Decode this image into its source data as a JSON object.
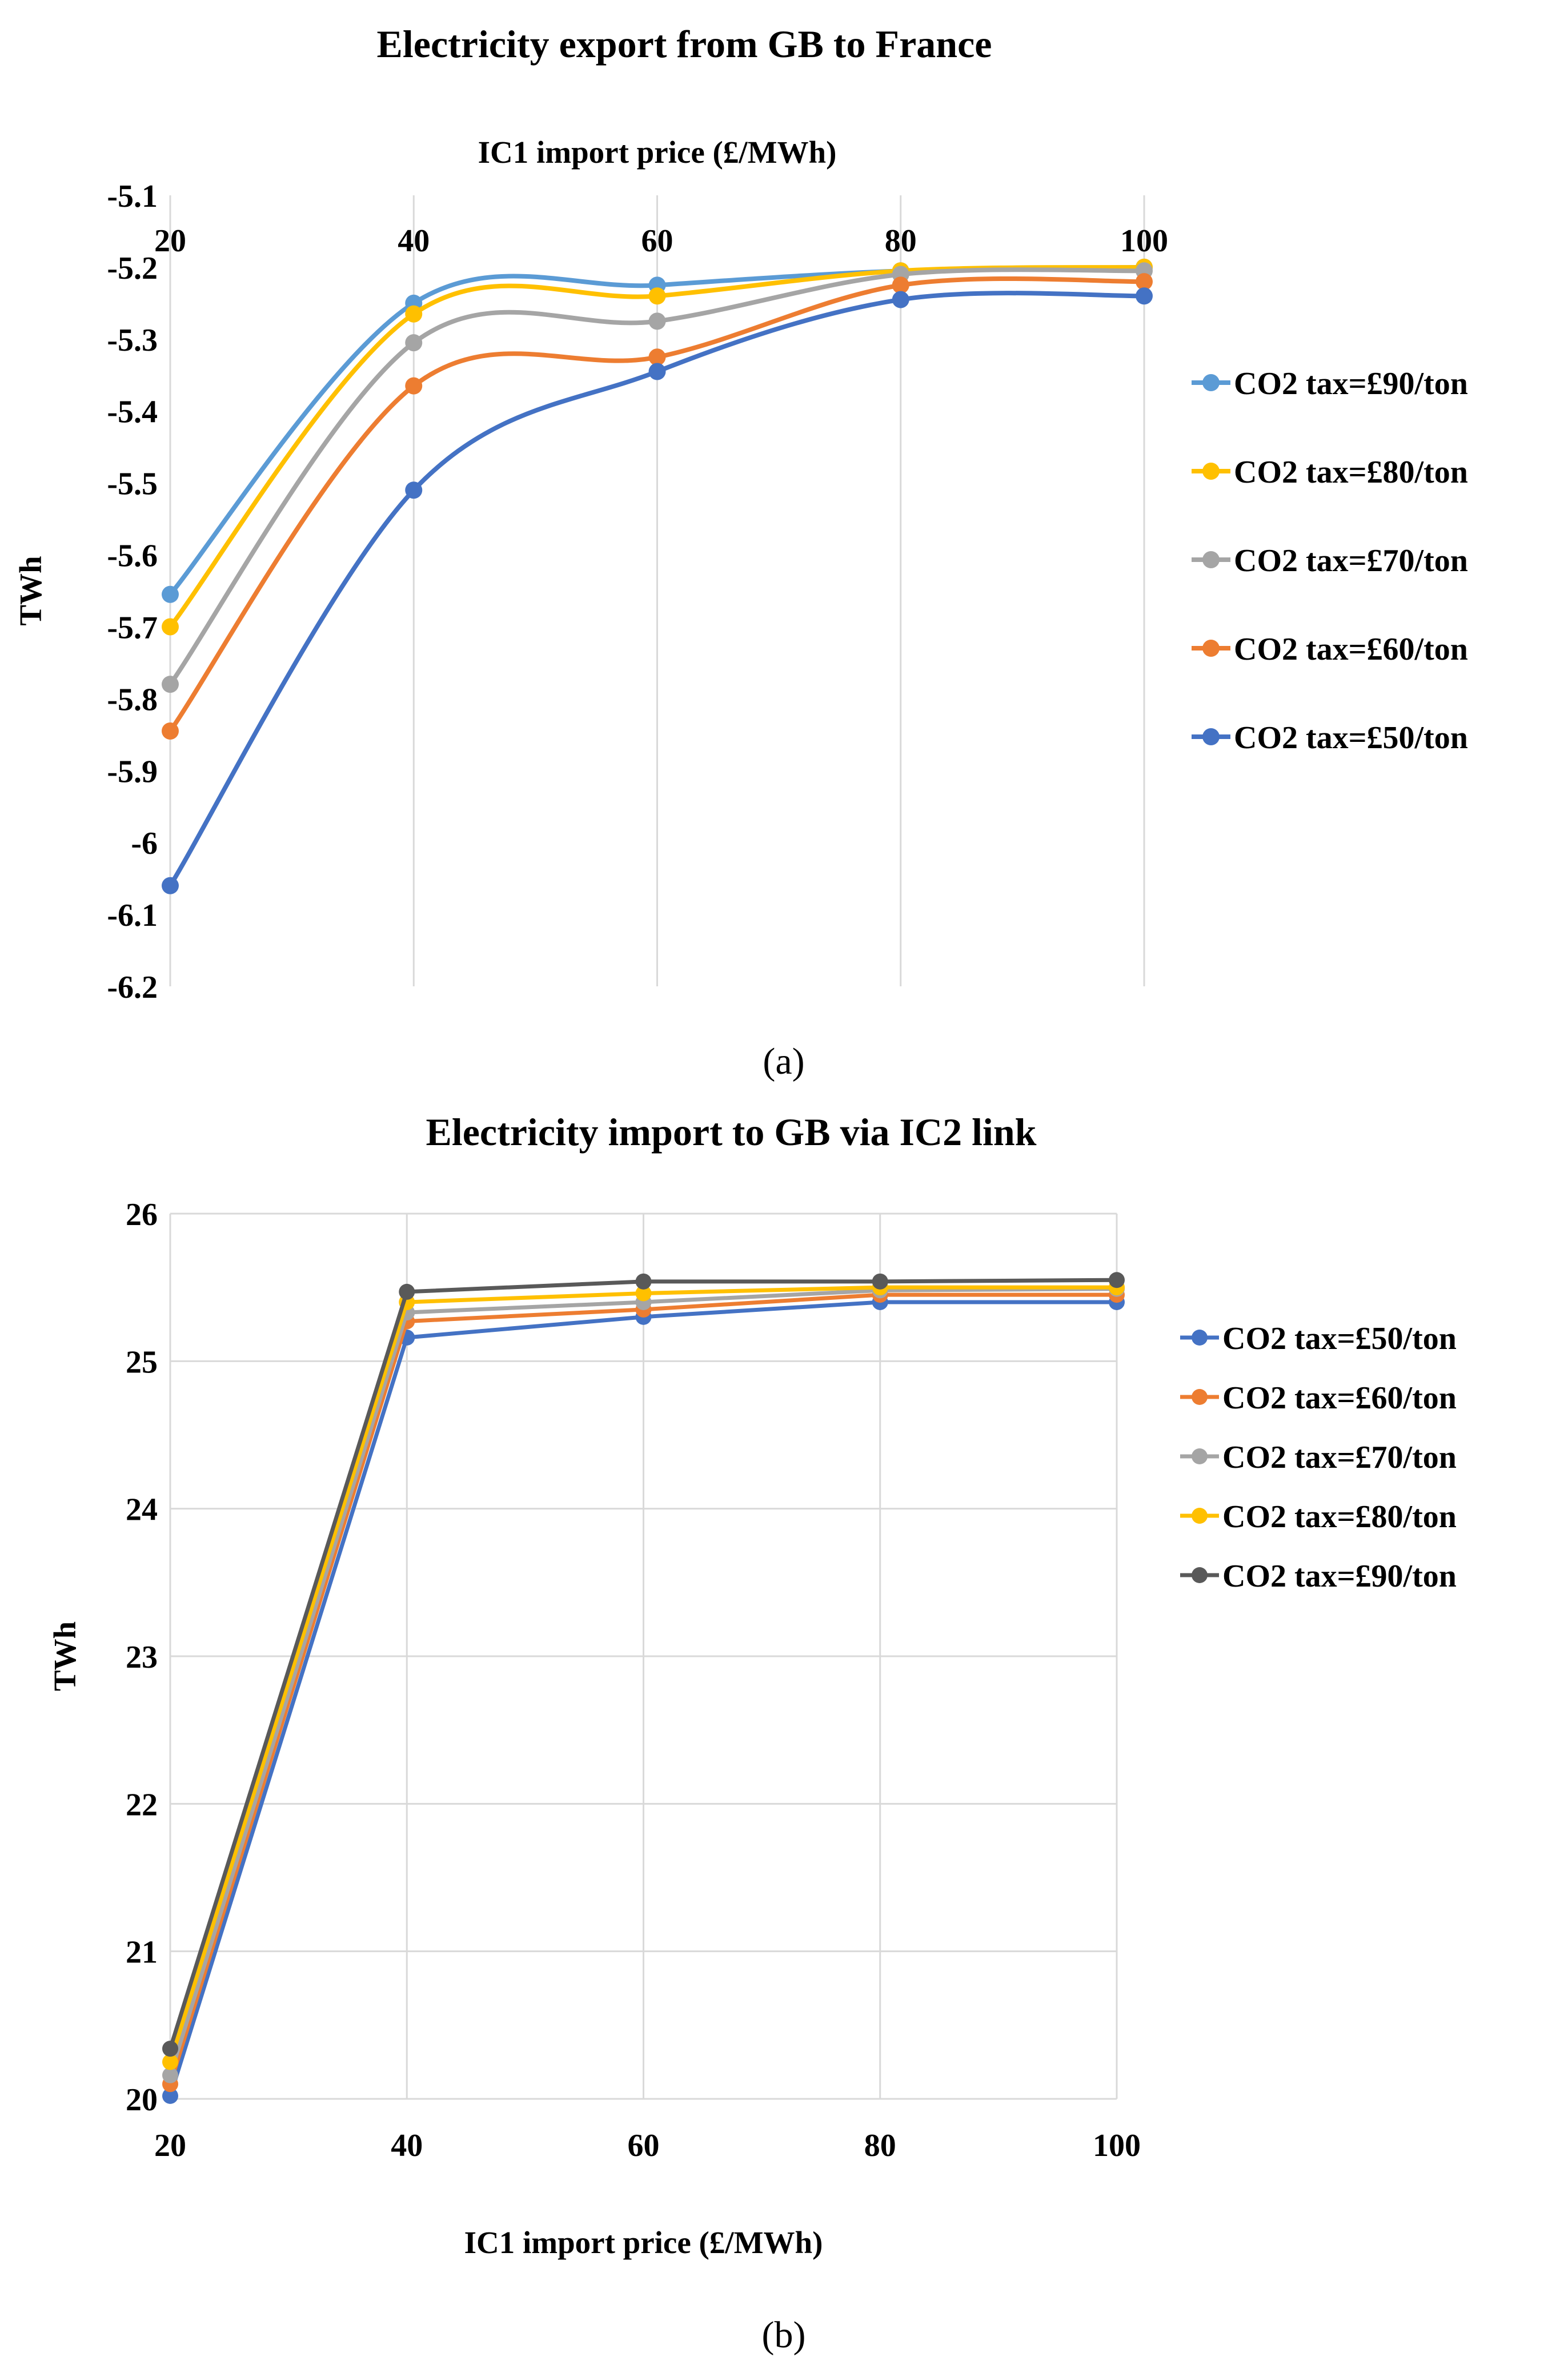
{
  "figure": {
    "panels": [
      {
        "label": "a"
      },
      {
        "label": "b"
      }
    ]
  },
  "chart_data": [
    {
      "type": "line",
      "smooth": true,
      "title": "Electricity export from GB to France",
      "xlabel": "IC1 import price (£/MWh)",
      "xlabel_position": "top",
      "ylabel": "TWh",
      "categories": [
        "20",
        "40",
        "60",
        "80",
        "100"
      ],
      "ylim": [
        -6.2,
        -5.1
      ],
      "yticks": [
        "-5.1",
        "-5.2",
        "-5.3",
        "-5.4",
        "-5.5",
        "-5.6",
        "-5.7",
        "-5.8",
        "-5.9",
        "-6",
        "-6.1",
        "-6.2"
      ],
      "ytick_values": [
        -5.1,
        -5.2,
        -5.3,
        -5.4,
        -5.5,
        -5.6,
        -5.7,
        -5.8,
        -5.9,
        -6.0,
        -6.1,
        -6.2
      ],
      "grid": "vertical",
      "legend_position": "right",
      "series": [
        {
          "name": "CO2 tax=£90/ton",
          "color": "#5b9bd5",
          "values": [
            -5.655,
            -5.25,
            -5.225,
            -5.205,
            -5.2
          ]
        },
        {
          "name": "CO2 tax=£80/ton",
          "color": "#ffc000",
          "values": [
            -5.7,
            -5.265,
            -5.24,
            -5.205,
            -5.2
          ]
        },
        {
          "name": "CO2 tax=£70/ton",
          "color": "#a5a5a5",
          "values": [
            -5.78,
            -5.305,
            -5.275,
            -5.21,
            -5.205
          ]
        },
        {
          "name": "CO2 tax=£60/ton",
          "color": "#ed7d31",
          "values": [
            -5.845,
            -5.365,
            -5.325,
            -5.225,
            -5.22
          ]
        },
        {
          "name": "CO2 tax=£50/ton",
          "color": "#4472c4",
          "values": [
            -6.06,
            -5.51,
            -5.345,
            -5.245,
            -5.24
          ]
        }
      ]
    },
    {
      "type": "line",
      "smooth": false,
      "title": "Electricity import to GB via IC2 link",
      "xlabel": "IC1 import price  (£/MWh)",
      "xlabel_position": "bottom",
      "ylabel": "TWh",
      "categories": [
        "20",
        "40",
        "60",
        "80",
        "100"
      ],
      "ylim": [
        20,
        26
      ],
      "yticks": [
        "20",
        "21",
        "22",
        "23",
        "24",
        "25",
        "26"
      ],
      "ytick_values": [
        20,
        21,
        22,
        23,
        24,
        25,
        26
      ],
      "grid": "both",
      "legend_position": "right",
      "series": [
        {
          "name": "CO2 tax=£50/ton",
          "color": "#4472c4",
          "values": [
            20.02,
            25.16,
            25.3,
            25.4,
            25.4
          ]
        },
        {
          "name": "CO2 tax=£60/ton",
          "color": "#ed7d31",
          "values": [
            20.1,
            25.27,
            25.35,
            25.45,
            25.45
          ]
        },
        {
          "name": "CO2 tax=£70/ton",
          "color": "#a5a5a5",
          "values": [
            20.16,
            25.33,
            25.4,
            25.48,
            25.49
          ]
        },
        {
          "name": "CO2 tax=£80/ton",
          "color": "#ffc000",
          "values": [
            20.25,
            25.4,
            25.46,
            25.5,
            25.5
          ]
        },
        {
          "name": "CO2 tax=£90/ton",
          "color": "#595959",
          "values": [
            20.34,
            25.47,
            25.54,
            25.54,
            25.55
          ]
        }
      ]
    }
  ]
}
